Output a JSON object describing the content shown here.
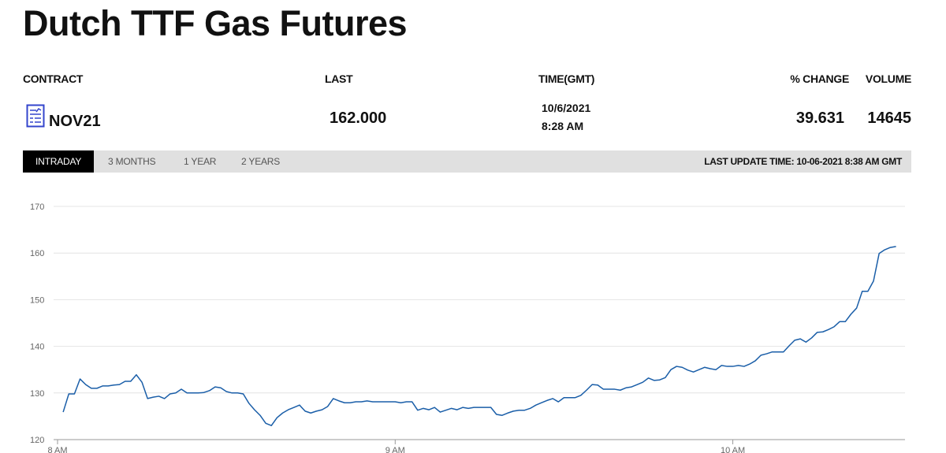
{
  "page": {
    "title": "Dutch TTF Gas Futures"
  },
  "quote": {
    "headers": [
      "CONTRACT",
      "LAST",
      "TIME(GMT)",
      "% CHANGE",
      "VOLUME"
    ],
    "contract": "NOV21",
    "last": "162.000",
    "date": "10/6/2021",
    "time": "8:28 AM",
    "change": "39.631",
    "volume": "14645"
  },
  "tabs": {
    "items": [
      "INTRADAY",
      "3 MONTHS",
      "1 YEAR",
      "2 YEARS"
    ],
    "active": 0,
    "last_update": "LAST UPDATE TIME: 10-06-2021 8:38 AM GMT"
  },
  "chart_data": {
    "type": "line",
    "color": "#1a5ea8",
    "grid": true,
    "x": [
      481,
      482,
      483,
      484,
      485,
      486,
      487,
      488,
      489,
      490,
      491,
      492,
      493,
      494,
      495,
      496,
      497,
      498,
      499,
      500,
      501,
      502,
      503,
      504,
      505,
      506,
      507,
      508,
      509,
      510,
      511,
      512,
      513,
      514,
      515,
      516,
      517,
      518,
      519,
      520,
      521,
      522,
      523,
      524,
      525,
      526,
      527,
      528,
      529,
      530,
      531,
      532,
      533,
      534,
      535,
      536,
      537,
      538,
      539,
      540,
      541,
      542,
      543,
      544,
      545,
      546,
      547,
      548,
      549,
      550,
      551,
      552,
      553,
      554,
      555,
      556,
      557,
      558,
      559,
      560,
      561,
      562,
      563,
      564,
      565,
      566,
      567,
      568,
      569,
      570,
      571,
      572,
      573,
      574,
      575,
      576,
      577,
      578,
      579,
      580,
      581,
      582,
      583,
      584,
      585,
      586,
      587,
      588,
      589,
      590,
      591,
      592,
      593,
      594,
      595,
      596,
      597,
      598,
      599,
      600,
      601,
      602,
      603,
      604,
      605,
      606,
      607,
      608,
      609,
      610,
      611,
      612,
      613,
      614,
      615,
      616,
      617,
      618,
      619,
      620,
      621,
      622,
      623,
      624,
      625,
      626,
      627,
      628,
      629
    ],
    "values": [
      125.9,
      129.8,
      129.8,
      133.0,
      131.8,
      131.0,
      131.0,
      131.5,
      131.5,
      131.7,
      131.8,
      132.5,
      132.5,
      133.9,
      132.3,
      128.8,
      129.1,
      129.3,
      128.8,
      129.8,
      130.0,
      130.8,
      130.0,
      130.0,
      130.0,
      130.1,
      130.5,
      131.3,
      131.1,
      130.3,
      130.0,
      130.0,
      129.8,
      127.8,
      126.4,
      125.2,
      123.5,
      123.0,
      124.7,
      125.7,
      126.4,
      126.9,
      127.4,
      126.1,
      125.7,
      126.1,
      126.4,
      127.1,
      128.8,
      128.3,
      127.9,
      127.9,
      128.1,
      128.1,
      128.3,
      128.1,
      128.1,
      128.1,
      128.1,
      128.1,
      127.9,
      128.1,
      128.1,
      126.3,
      126.7,
      126.4,
      126.9,
      125.9,
      126.3,
      126.7,
      126.4,
      126.9,
      126.7,
      126.9,
      126.9,
      126.9,
      126.9,
      125.4,
      125.2,
      125.7,
      126.1,
      126.3,
      126.3,
      126.7,
      127.4,
      127.9,
      128.4,
      128.8,
      128.1,
      129.0,
      129.0,
      129.0,
      129.5,
      130.6,
      131.8,
      131.7,
      130.8,
      130.8,
      130.8,
      130.6,
      131.1,
      131.3,
      131.8,
      132.3,
      133.2,
      132.7,
      132.8,
      133.3,
      135.0,
      135.7,
      135.5,
      134.9,
      134.5,
      135.0,
      135.5,
      135.2,
      135.0,
      135.9,
      135.7,
      135.7,
      135.9,
      135.7,
      136.2,
      136.9,
      138.1,
      138.4,
      138.8,
      138.8,
      138.8,
      140.1,
      141.3,
      141.6,
      140.9,
      141.8,
      143.0,
      143.1,
      143.6,
      144.2,
      145.3,
      145.3,
      146.9,
      148.2,
      151.8,
      151.8,
      154.0,
      159.9,
      160.7,
      161.2,
      161.4
    ],
    "xlim": [
      479.3,
      630.6
    ],
    "xticks": [
      {
        "value": 480,
        "label": "8 AM"
      },
      {
        "value": 540,
        "label": "9 AM"
      },
      {
        "value": 600,
        "label": "10 AM"
      }
    ],
    "ylim": [
      120,
      170
    ],
    "yticks": [
      120,
      130,
      140,
      150,
      160,
      170
    ]
  }
}
